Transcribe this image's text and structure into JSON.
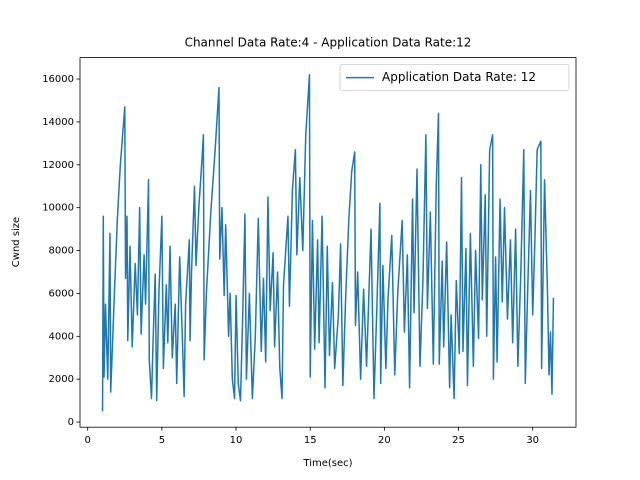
{
  "chart_data": {
    "type": "line",
    "title": "Channel Data Rate:4 - Application Data Rate:12",
    "x_label": "Time(sec)",
    "y_label": "Cwnd size",
    "xlim": [
      -0.52,
      32.92
    ],
    "ylim": [
      -240,
      17000
    ],
    "xticks": [
      0,
      5,
      10,
      15,
      20,
      25,
      30
    ],
    "yticks": [
      0,
      2000,
      4000,
      6000,
      8000,
      10000,
      12000,
      14000,
      16000
    ],
    "legend": "upper right",
    "grid": false,
    "x": [
      1.0,
      1.05,
      1.1,
      1.2,
      1.35,
      1.5,
      1.55,
      1.8,
      2.0,
      2.2,
      2.5,
      2.55,
      2.65,
      2.7,
      2.85,
      3.0,
      3.2,
      3.35,
      3.5,
      3.6,
      3.8,
      3.9,
      4.1,
      4.15,
      4.3,
      4.4,
      4.55,
      4.65,
      4.8,
      5.0,
      5.1,
      5.3,
      5.4,
      5.55,
      5.7,
      5.9,
      6.0,
      6.2,
      6.4,
      6.5,
      6.6,
      6.85,
      6.9,
      7.0,
      7.2,
      7.3,
      7.5,
      7.7,
      7.8,
      7.85,
      8.0,
      8.3,
      8.6,
      8.85,
      8.9,
      9.05,
      9.2,
      9.3,
      9.5,
      9.6,
      9.75,
      9.9,
      10.0,
      10.15,
      10.3,
      10.45,
      10.6,
      10.7,
      10.9,
      11.1,
      11.3,
      11.5,
      11.7,
      11.85,
      12.0,
      12.15,
      12.3,
      12.5,
      12.6,
      12.8,
      12.95,
      13.1,
      13.2,
      13.5,
      13.6,
      13.8,
      14.0,
      14.1,
      14.3,
      14.5,
      14.7,
      14.95,
      15.0,
      15.15,
      15.3,
      15.5,
      15.6,
      15.8,
      16.0,
      16.15,
      16.3,
      16.5,
      16.65,
      16.9,
      17.05,
      17.2,
      17.4,
      17.6,
      17.8,
      18.0,
      18.05,
      18.2,
      18.4,
      18.6,
      18.8,
      19.1,
      19.3,
      19.5,
      19.7,
      19.75,
      19.9,
      20.1,
      20.25,
      20.5,
      20.7,
      20.9,
      21.2,
      21.35,
      21.55,
      21.7,
      21.9,
      22.0,
      22.2,
      22.4,
      22.6,
      22.8,
      22.9,
      23.1,
      23.3,
      23.5,
      23.65,
      23.7,
      23.9,
      24.0,
      24.2,
      24.4,
      24.5,
      24.7,
      24.85,
      25.05,
      25.2,
      25.3,
      25.5,
      25.6,
      25.8,
      26.0,
      26.15,
      26.35,
      26.5,
      26.6,
      26.8,
      26.9,
      27.1,
      27.3,
      27.35,
      27.5,
      27.6,
      27.8,
      27.95,
      28.1,
      28.3,
      28.5,
      28.65,
      28.85,
      29.0,
      29.2,
      29.4,
      29.5,
      29.65,
      29.85,
      30.0,
      30.15,
      30.3,
      30.55,
      30.6,
      30.8,
      31.0,
      31.1,
      31.2,
      31.3,
      31.4
    ],
    "series": [
      {
        "name": "Application Data Rate: 12",
        "color": "#1f77b4",
        "values": [
          500,
          9600,
          2100,
          5500,
          2000,
          8800,
          1400,
          6000,
          9500,
          12000,
          14700,
          6700,
          9600,
          3800,
          8200,
          3500,
          7400,
          5000,
          10000,
          4100,
          7800,
          5500,
          11300,
          2900,
          1100,
          3600,
          6900,
          1000,
          6000,
          9600,
          2500,
          6400,
          3700,
          8200,
          3000,
          5500,
          1800,
          7700,
          3500,
          1200,
          5500,
          8500,
          3800,
          7000,
          11000,
          7300,
          10100,
          12200,
          13400,
          2900,
          6000,
          9800,
          12800,
          15600,
          7600,
          10000,
          5900,
          9200,
          4000,
          6000,
          2000,
          1100,
          5900,
          1800,
          1000,
          5000,
          9700,
          2000,
          6000,
          1100,
          4000,
          9500,
          3300,
          6700,
          2800,
          10500,
          5200,
          7900,
          3500,
          7000,
          2500,
          1100,
          6400,
          9600,
          5400,
          10800,
          12700,
          7800,
          11400,
          8000,
          13400,
          16200,
          2100,
          9400,
          3400,
          8500,
          3700,
          9600,
          1600,
          8200,
          3100,
          6500,
          2500,
          5000,
          8300,
          1700,
          6000,
          9400,
          11700,
          12600,
          4500,
          7000,
          2000,
          6200,
          2600,
          9000,
          1100,
          5500,
          10200,
          1800,
          7300,
          2500,
          5800,
          8700,
          2200,
          6000,
          9400,
          4200,
          7800,
          1600,
          10400,
          5100,
          11800,
          2600,
          6600,
          13400,
          5300,
          9800,
          2700,
          11100,
          14400,
          2700,
          7500,
          3500,
          8400,
          1600,
          5000,
          1100,
          6600,
          3200,
          11400,
          3300,
          8100,
          1700,
          8800,
          2600,
          8000,
          3900,
          12000,
          5700,
          10600,
          4000,
          12700,
          13400,
          2000,
          7700,
          2800,
          10400,
          5600,
          10000,
          4800,
          8500,
          3700,
          9000,
          2600,
          7000,
          12700,
          1800,
          5800,
          10800,
          5000,
          8500,
          12700,
          13100,
          2500,
          11300,
          6000,
          2200,
          4200,
          1300,
          5800
        ]
      }
    ]
  }
}
